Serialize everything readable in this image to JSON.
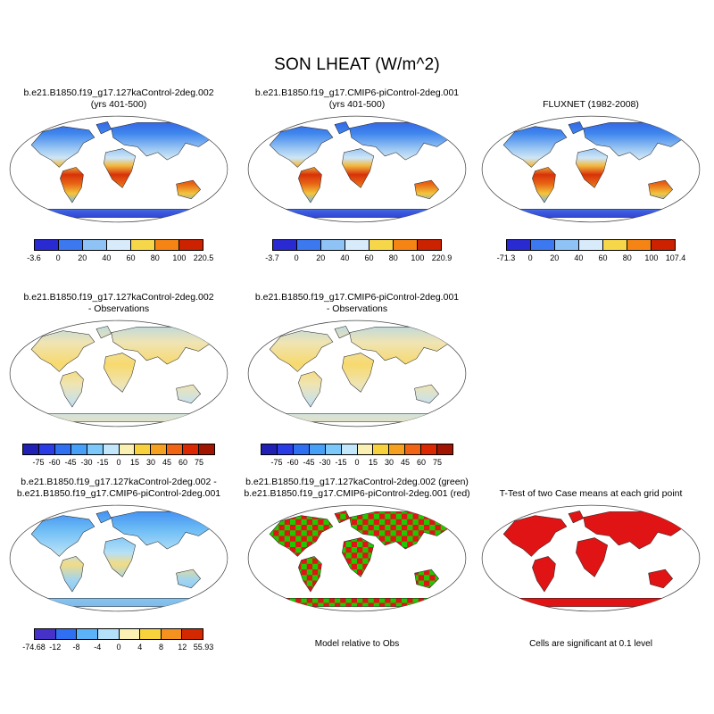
{
  "figure": {
    "title": "SON LHEAT (W/m^2)",
    "variable": "LHEAT",
    "season": "SON",
    "units": "W/m^2"
  },
  "panels": {
    "r1p1": {
      "title_lines": [
        "b.e21.B1850.f19_g17.127kaControl-2deg.002",
        "(yrs 401-500)"
      ]
    },
    "r1p2": {
      "title_lines": [
        "b.e21.B1850.f19_g17.CMIP6-piControl-2deg.001",
        "(yrs 401-500)"
      ]
    },
    "r1p3": {
      "title_lines": [
        "FLUXNET (1982-2008)"
      ]
    },
    "r2p1": {
      "title_lines": [
        "b.e21.B1850.f19_g17.127kaControl-2deg.002",
        "- Observations"
      ]
    },
    "r2p2": {
      "title_lines": [
        "b.e21.B1850.f19_g17.CMIP6-piControl-2deg.001",
        "- Observations"
      ]
    },
    "r3p1": {
      "title_lines": [
        "b.e21.B1850.f19_g17.127kaControl-2deg.002 -",
        "b.e21.B1850.f19_g17.CMIP6-piControl-2deg.001"
      ]
    },
    "r3p2": {
      "title_lines": [
        "b.e21.B1850.f19_g17.127kaControl-2deg.002 (green)",
        "b.e21.B1850.f19_g17.CMIP6-piControl-2deg.001 (red)"
      ],
      "caption": "Model relative to Obs"
    },
    "r3p3": {
      "title_lines": [
        "T-Test of two Case means at each grid point"
      ],
      "caption": "Cells are significant at 0.1 level"
    }
  },
  "colorbars": {
    "r1p1": {
      "colors": [
        "#2a2ad2",
        "#3c78f0",
        "#8fc2f5",
        "#d8ebfa",
        "#f7d74a",
        "#f58414",
        "#cc2200"
      ],
      "ticks": [
        "-3.6",
        "0",
        "20",
        "40",
        "60",
        "80",
        "100",
        "220.5"
      ]
    },
    "r1p2": {
      "colors": [
        "#2a2ad2",
        "#3c78f0",
        "#8fc2f5",
        "#d8ebfa",
        "#f7d74a",
        "#f58414",
        "#cc2200"
      ],
      "ticks": [
        "-3.7",
        "0",
        "20",
        "40",
        "60",
        "80",
        "100",
        "220.9"
      ]
    },
    "r1p3": {
      "colors": [
        "#2a2ad2",
        "#3c78f0",
        "#8fc2f5",
        "#d8ebfa",
        "#f7d74a",
        "#f58414",
        "#cc2200"
      ],
      "ticks": [
        "-71.3",
        "0",
        "20",
        "40",
        "60",
        "80",
        "100",
        "107.4"
      ]
    },
    "r2": {
      "colors": [
        "#2020b4",
        "#2a3ce6",
        "#2f6ff2",
        "#46a0f7",
        "#7cc8fa",
        "#c2e6fa",
        "#faf0b4",
        "#f7d23c",
        "#f5a01e",
        "#f06414",
        "#dc2800",
        "#a01400"
      ],
      "ticks": [
        "-75",
        "-60",
        "-45",
        "-30",
        "-15",
        "0",
        "15",
        "30",
        "45",
        "60",
        "75"
      ]
    },
    "r3p1": {
      "colors": [
        "#4632c8",
        "#2f6ff2",
        "#5ab4f7",
        "#b4e0fa",
        "#faf0b4",
        "#f7d23c",
        "#f5911e",
        "#d42800"
      ],
      "ticks": [
        "-74.68",
        "-12",
        "-8",
        "-4",
        "0",
        "4",
        "8",
        "12",
        "55.93"
      ]
    }
  },
  "map_schemes": {
    "lheat": {
      "kind": "gradient",
      "stops": [
        [
          "0",
          "#2d50dc"
        ],
        [
          "0.18",
          "#3f86ee"
        ],
        [
          "0.32",
          "#9cc8f2"
        ],
        [
          "0.40",
          "#cfe6f7"
        ],
        [
          "0.47",
          "#f2b83c"
        ],
        [
          "0.55",
          "#d8320a"
        ],
        [
          "0.63",
          "#e86414"
        ],
        [
          "0.72",
          "#f2c53c"
        ],
        [
          "0.80",
          "#7ab4ee"
        ],
        [
          "0.88",
          "#3c5ce0"
        ],
        [
          "1",
          "#2a2ac8"
        ]
      ]
    },
    "diff_obs": {
      "kind": "gradient",
      "stops": [
        [
          "0",
          "#a9d3ef"
        ],
        [
          "0.22",
          "#efe4b4"
        ],
        [
          "0.42",
          "#f7d96e"
        ],
        [
          "0.60",
          "#efe4b4"
        ],
        [
          "0.78",
          "#c3e0f2"
        ],
        [
          "1",
          "#efe4b4"
        ]
      ]
    },
    "diff_model": {
      "kind": "gradient",
      "stops": [
        [
          "0",
          "#2f7ff2"
        ],
        [
          "0.25",
          "#6fbef5"
        ],
        [
          "0.45",
          "#b5e0f7"
        ],
        [
          "0.55",
          "#f2dc85"
        ],
        [
          "0.70",
          "#9fd4f2"
        ],
        [
          "1",
          "#74b4ea"
        ]
      ]
    },
    "green_red": {
      "kind": "checker",
      "colors": [
        "#1fc800",
        "#e01414"
      ]
    },
    "ttest": {
      "kind": "solid",
      "color": "#e01414"
    }
  },
  "chart_data": [
    {
      "type": "heatmap",
      "panel": "top-left",
      "projection": "robinson global map",
      "title": "b.e21.B1850.f19_g17.127kaControl-2deg.002 (yrs 401-500)",
      "variable": "LHEAT",
      "season": "SON",
      "units": "W/m^2",
      "colorbar_ticks": [
        -3.6,
        0,
        20,
        40,
        60,
        80,
        100,
        220.5
      ],
      "min": -3.6,
      "max": 220.5
    },
    {
      "type": "heatmap",
      "panel": "top-middle",
      "projection": "robinson global map",
      "title": "b.e21.B1850.f19_g17.CMIP6-piControl-2deg.001 (yrs 401-500)",
      "variable": "LHEAT",
      "season": "SON",
      "units": "W/m^2",
      "colorbar_ticks": [
        -3.7,
        0,
        20,
        40,
        60,
        80,
        100,
        220.9
      ],
      "min": -3.7,
      "max": 220.9
    },
    {
      "type": "heatmap",
      "panel": "top-right",
      "projection": "robinson global map",
      "title": "FLUXNET (1982-2008)",
      "variable": "LHEAT",
      "season": "SON",
      "units": "W/m^2",
      "colorbar_ticks": [
        -71.3,
        0,
        20,
        40,
        60,
        80,
        100,
        107.4
      ],
      "min": -71.3,
      "max": 107.4
    },
    {
      "type": "heatmap",
      "panel": "middle-left",
      "projection": "robinson global map",
      "title": "b.e21.B1850.f19_g17.127kaControl-2deg.002 - Observations",
      "units": "W/m^2",
      "colorbar_ticks": [
        -75,
        -60,
        -45,
        -30,
        -15,
        0,
        15,
        30,
        45,
        60,
        75
      ]
    },
    {
      "type": "heatmap",
      "panel": "middle-middle",
      "projection": "robinson global map",
      "title": "b.e21.B1850.f19_g17.CMIP6-piControl-2deg.001 - Observations",
      "units": "W/m^2",
      "colorbar_ticks": [
        -75,
        -60,
        -45,
        -30,
        -15,
        0,
        15,
        30,
        45,
        60,
        75
      ]
    },
    {
      "type": "heatmap",
      "panel": "bottom-left",
      "projection": "robinson global map",
      "title": "b.e21.B1850.f19_g17.127kaControl-2deg.002 - b.e21.B1850.f19_g17.CMIP6-piControl-2deg.001",
      "units": "W/m^2",
      "colorbar_ticks": [
        -74.68,
        -12,
        -8,
        -4,
        0,
        4,
        8,
        12,
        55.93
      ],
      "min": -74.68,
      "max": 55.93
    },
    {
      "type": "heatmap",
      "panel": "bottom-middle",
      "projection": "robinson global map",
      "title": "Model relative to Obs",
      "legend": [
        {
          "label": "b.e21.B1850.f19_g17.127kaControl-2deg.002",
          "color": "green"
        },
        {
          "label": "b.e21.B1850.f19_g17.CMIP6-piControl-2deg.001",
          "color": "red"
        }
      ]
    },
    {
      "type": "heatmap",
      "panel": "bottom-right",
      "projection": "robinson global map",
      "title": "T-Test of two Case means at each grid point",
      "note": "Cells are significant at 0.1 level"
    }
  ]
}
